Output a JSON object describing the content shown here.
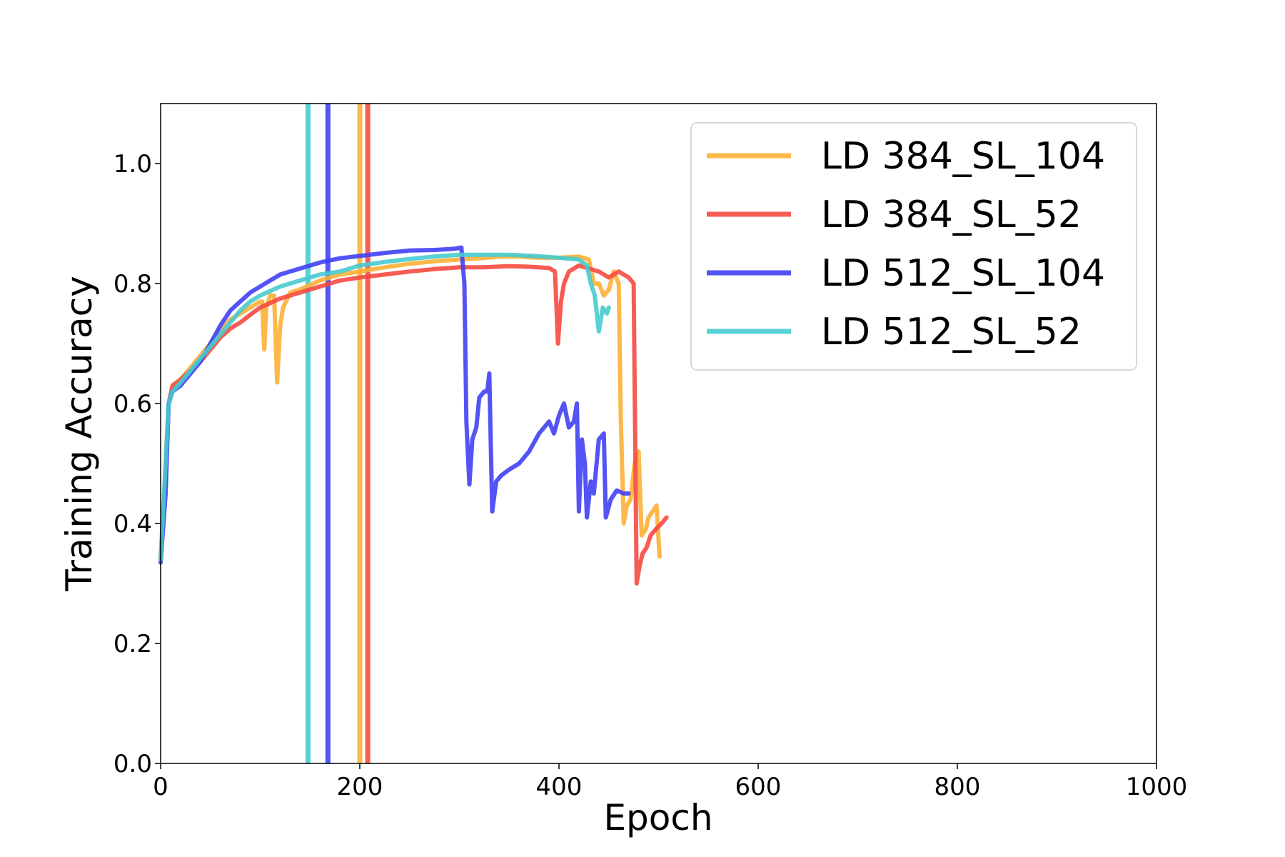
{
  "chart_data": {
    "type": "line",
    "xlabel": "Epoch",
    "ylabel": "Training Accuracy",
    "xlim": [
      0,
      1000
    ],
    "ylim": [
      0,
      1.1
    ],
    "xticks": [
      0,
      200,
      400,
      600,
      800,
      1000
    ],
    "xtick_labels": [
      "0",
      "200",
      "400",
      "600",
      "800",
      "1000"
    ],
    "yticks": [
      0.0,
      0.2,
      0.4,
      0.6,
      0.8,
      1.0
    ],
    "ytick_labels": [
      "0.0",
      "0.2",
      "0.4",
      "0.6",
      "0.8",
      "1.0"
    ],
    "grid": false,
    "legend_position": "top-right",
    "series": [
      {
        "name": "LD 384_SL_104",
        "color": "#FDB035",
        "vline_x": 200,
        "points": [
          [
            0,
            0.34
          ],
          [
            5,
            0.5
          ],
          [
            8,
            0.6
          ],
          [
            12,
            0.62
          ],
          [
            20,
            0.64
          ],
          [
            30,
            0.66
          ],
          [
            40,
            0.68
          ],
          [
            50,
            0.7
          ],
          [
            60,
            0.72
          ],
          [
            70,
            0.74
          ],
          [
            80,
            0.75
          ],
          [
            90,
            0.76
          ],
          [
            100,
            0.77
          ],
          [
            102,
            0.77
          ],
          [
            104,
            0.69
          ],
          [
            106,
            0.76
          ],
          [
            110,
            0.78
          ],
          [
            114,
            0.78
          ],
          [
            117,
            0.635
          ],
          [
            120,
            0.73
          ],
          [
            123,
            0.76
          ],
          [
            130,
            0.785
          ],
          [
            140,
            0.79
          ],
          [
            160,
            0.805
          ],
          [
            180,
            0.815
          ],
          [
            200,
            0.82
          ],
          [
            225,
            0.827
          ],
          [
            250,
            0.833
          ],
          [
            275,
            0.837
          ],
          [
            300,
            0.84
          ],
          [
            320,
            0.842
          ],
          [
            340,
            0.845
          ],
          [
            360,
            0.845
          ],
          [
            380,
            0.843
          ],
          [
            400,
            0.843
          ],
          [
            420,
            0.845
          ],
          [
            430,
            0.84
          ],
          [
            435,
            0.8
          ],
          [
            440,
            0.8
          ],
          [
            445,
            0.78
          ],
          [
            450,
            0.79
          ],
          [
            455,
            0.82
          ],
          [
            460,
            0.8
          ],
          [
            462,
            0.58
          ],
          [
            465,
            0.4
          ],
          [
            468,
            0.43
          ],
          [
            472,
            0.44
          ],
          [
            476,
            0.5
          ],
          [
            480,
            0.52
          ],
          [
            483,
            0.38
          ],
          [
            487,
            0.39
          ],
          [
            490,
            0.41
          ],
          [
            494,
            0.42
          ],
          [
            498,
            0.43
          ],
          [
            501,
            0.345
          ]
        ]
      },
      {
        "name": "LD 384_SL_52",
        "color": "#F54A40",
        "vline_x": 208,
        "points": [
          [
            0,
            0.34
          ],
          [
            5,
            0.48
          ],
          [
            8,
            0.6
          ],
          [
            12,
            0.63
          ],
          [
            20,
            0.64
          ],
          [
            30,
            0.655
          ],
          [
            40,
            0.67
          ],
          [
            50,
            0.69
          ],
          [
            60,
            0.71
          ],
          [
            70,
            0.725
          ],
          [
            80,
            0.735
          ],
          [
            90,
            0.748
          ],
          [
            100,
            0.76
          ],
          [
            120,
            0.775
          ],
          [
            140,
            0.785
          ],
          [
            160,
            0.795
          ],
          [
            180,
            0.805
          ],
          [
            200,
            0.81
          ],
          [
            225,
            0.815
          ],
          [
            250,
            0.82
          ],
          [
            275,
            0.824
          ],
          [
            300,
            0.827
          ],
          [
            325,
            0.827
          ],
          [
            350,
            0.829
          ],
          [
            370,
            0.828
          ],
          [
            390,
            0.826
          ],
          [
            396,
            0.82
          ],
          [
            399,
            0.7
          ],
          [
            402,
            0.77
          ],
          [
            405,
            0.8
          ],
          [
            410,
            0.82
          ],
          [
            420,
            0.83
          ],
          [
            430,
            0.825
          ],
          [
            440,
            0.82
          ],
          [
            450,
            0.81
          ],
          [
            460,
            0.82
          ],
          [
            470,
            0.81
          ],
          [
            475,
            0.8
          ],
          [
            478,
            0.3
          ],
          [
            481,
            0.33
          ],
          [
            484,
            0.35
          ],
          [
            488,
            0.36
          ],
          [
            492,
            0.38
          ],
          [
            497,
            0.39
          ],
          [
            503,
            0.4
          ],
          [
            508,
            0.41
          ]
        ]
      },
      {
        "name": "LD 512_SL_104",
        "color": "#4040F5",
        "vline_x": 168,
        "points": [
          [
            0,
            0.335
          ],
          [
            5,
            0.45
          ],
          [
            8,
            0.6
          ],
          [
            12,
            0.62
          ],
          [
            20,
            0.63
          ],
          [
            30,
            0.65
          ],
          [
            40,
            0.67
          ],
          [
            50,
            0.7
          ],
          [
            60,
            0.73
          ],
          [
            70,
            0.755
          ],
          [
            80,
            0.77
          ],
          [
            90,
            0.785
          ],
          [
            100,
            0.795
          ],
          [
            120,
            0.815
          ],
          [
            140,
            0.825
          ],
          [
            160,
            0.835
          ],
          [
            180,
            0.842
          ],
          [
            200,
            0.846
          ],
          [
            225,
            0.851
          ],
          [
            250,
            0.855
          ],
          [
            275,
            0.856
          ],
          [
            295,
            0.858
          ],
          [
            302,
            0.86
          ],
          [
            305,
            0.8
          ],
          [
            307,
            0.57
          ],
          [
            310,
            0.465
          ],
          [
            313,
            0.54
          ],
          [
            317,
            0.56
          ],
          [
            320,
            0.61
          ],
          [
            325,
            0.62
          ],
          [
            328,
            0.62
          ],
          [
            330,
            0.65
          ],
          [
            333,
            0.42
          ],
          [
            337,
            0.47
          ],
          [
            342,
            0.48
          ],
          [
            350,
            0.49
          ],
          [
            360,
            0.5
          ],
          [
            370,
            0.52
          ],
          [
            380,
            0.55
          ],
          [
            390,
            0.57
          ],
          [
            395,
            0.55
          ],
          [
            400,
            0.58
          ],
          [
            405,
            0.6
          ],
          [
            410,
            0.56
          ],
          [
            415,
            0.57
          ],
          [
            418,
            0.6
          ],
          [
            420,
            0.42
          ],
          [
            423,
            0.54
          ],
          [
            426,
            0.5
          ],
          [
            428,
            0.41
          ],
          [
            432,
            0.47
          ],
          [
            435,
            0.45
          ],
          [
            440,
            0.54
          ],
          [
            445,
            0.55
          ],
          [
            447,
            0.41
          ],
          [
            452,
            0.44
          ],
          [
            458,
            0.455
          ],
          [
            465,
            0.45
          ],
          [
            470,
            0.45
          ]
        ]
      },
      {
        "name": "LD 512_SL_52",
        "color": "#46CBCF",
        "vline_x": 148,
        "points": [
          [
            0,
            0.34
          ],
          [
            5,
            0.5
          ],
          [
            8,
            0.6
          ],
          [
            12,
            0.62
          ],
          [
            20,
            0.635
          ],
          [
            30,
            0.655
          ],
          [
            40,
            0.675
          ],
          [
            50,
            0.695
          ],
          [
            60,
            0.715
          ],
          [
            70,
            0.735
          ],
          [
            80,
            0.755
          ],
          [
            90,
            0.77
          ],
          [
            100,
            0.78
          ],
          [
            120,
            0.795
          ],
          [
            140,
            0.805
          ],
          [
            160,
            0.815
          ],
          [
            180,
            0.82
          ],
          [
            200,
            0.83
          ],
          [
            225,
            0.836
          ],
          [
            250,
            0.841
          ],
          [
            275,
            0.845
          ],
          [
            300,
            0.848
          ],
          [
            325,
            0.848
          ],
          [
            350,
            0.848
          ],
          [
            375,
            0.846
          ],
          [
            400,
            0.843
          ],
          [
            420,
            0.84
          ],
          [
            428,
            0.83
          ],
          [
            432,
            0.8
          ],
          [
            436,
            0.78
          ],
          [
            440,
            0.72
          ],
          [
            444,
            0.76
          ],
          [
            448,
            0.75
          ],
          [
            450,
            0.76
          ]
        ]
      }
    ]
  }
}
